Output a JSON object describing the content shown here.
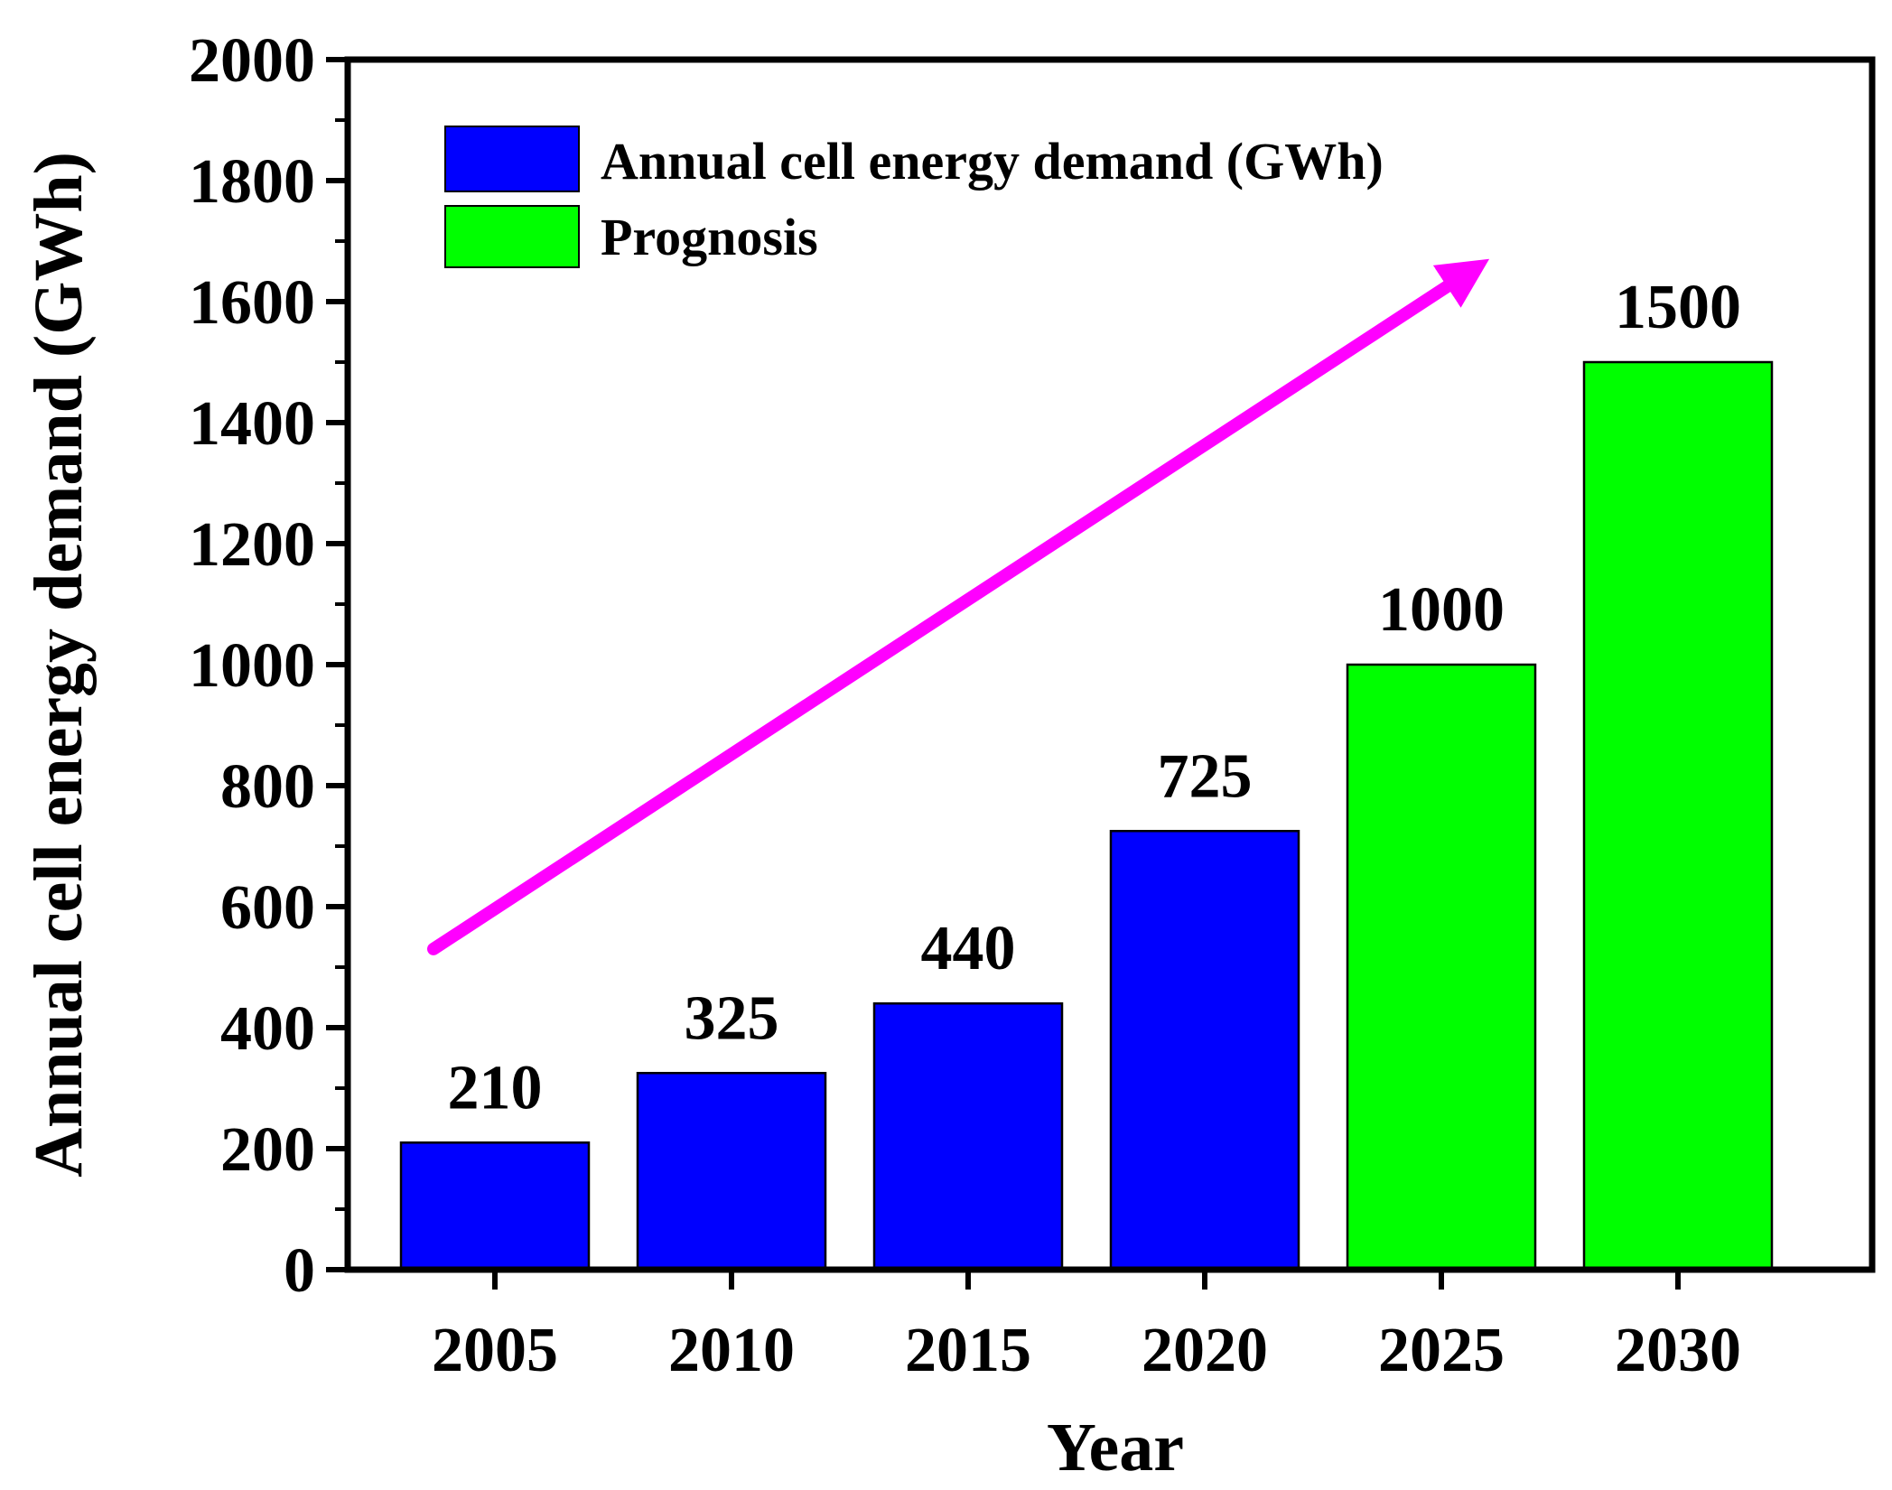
{
  "chart_data": {
    "type": "bar",
    "title": "",
    "xlabel": "Year",
    "ylabel": "Annual cell energy demand (GWh)",
    "ylim": [
      0,
      2000
    ],
    "yticks": [
      0,
      200,
      400,
      600,
      800,
      1000,
      1200,
      1400,
      1600,
      1800,
      2000
    ],
    "categories": [
      "2005",
      "2010",
      "2015",
      "2020",
      "2025",
      "2030"
    ],
    "values": [
      210,
      325,
      440,
      725,
      1000,
      1500
    ],
    "value_labels": [
      "210",
      "325",
      "440",
      "725",
      "1000",
      "1500"
    ],
    "bar_series": [
      "actual",
      "actual",
      "actual",
      "actual",
      "prognosis",
      "prognosis"
    ],
    "series": [
      {
        "key": "actual",
        "name": "Annual cell energy demand (GWh)",
        "color": "#0000ff"
      },
      {
        "key": "prognosis",
        "name": "Prognosis",
        "color": "#00ff00"
      }
    ],
    "legend_position": "top-left",
    "grid": false,
    "annotations": [
      {
        "type": "trend-arrow",
        "color": "#ff00ff",
        "from": {
          "x": "2005",
          "y": 530
        },
        "to": {
          "x": "2030",
          "y": 1650
        }
      }
    ]
  }
}
